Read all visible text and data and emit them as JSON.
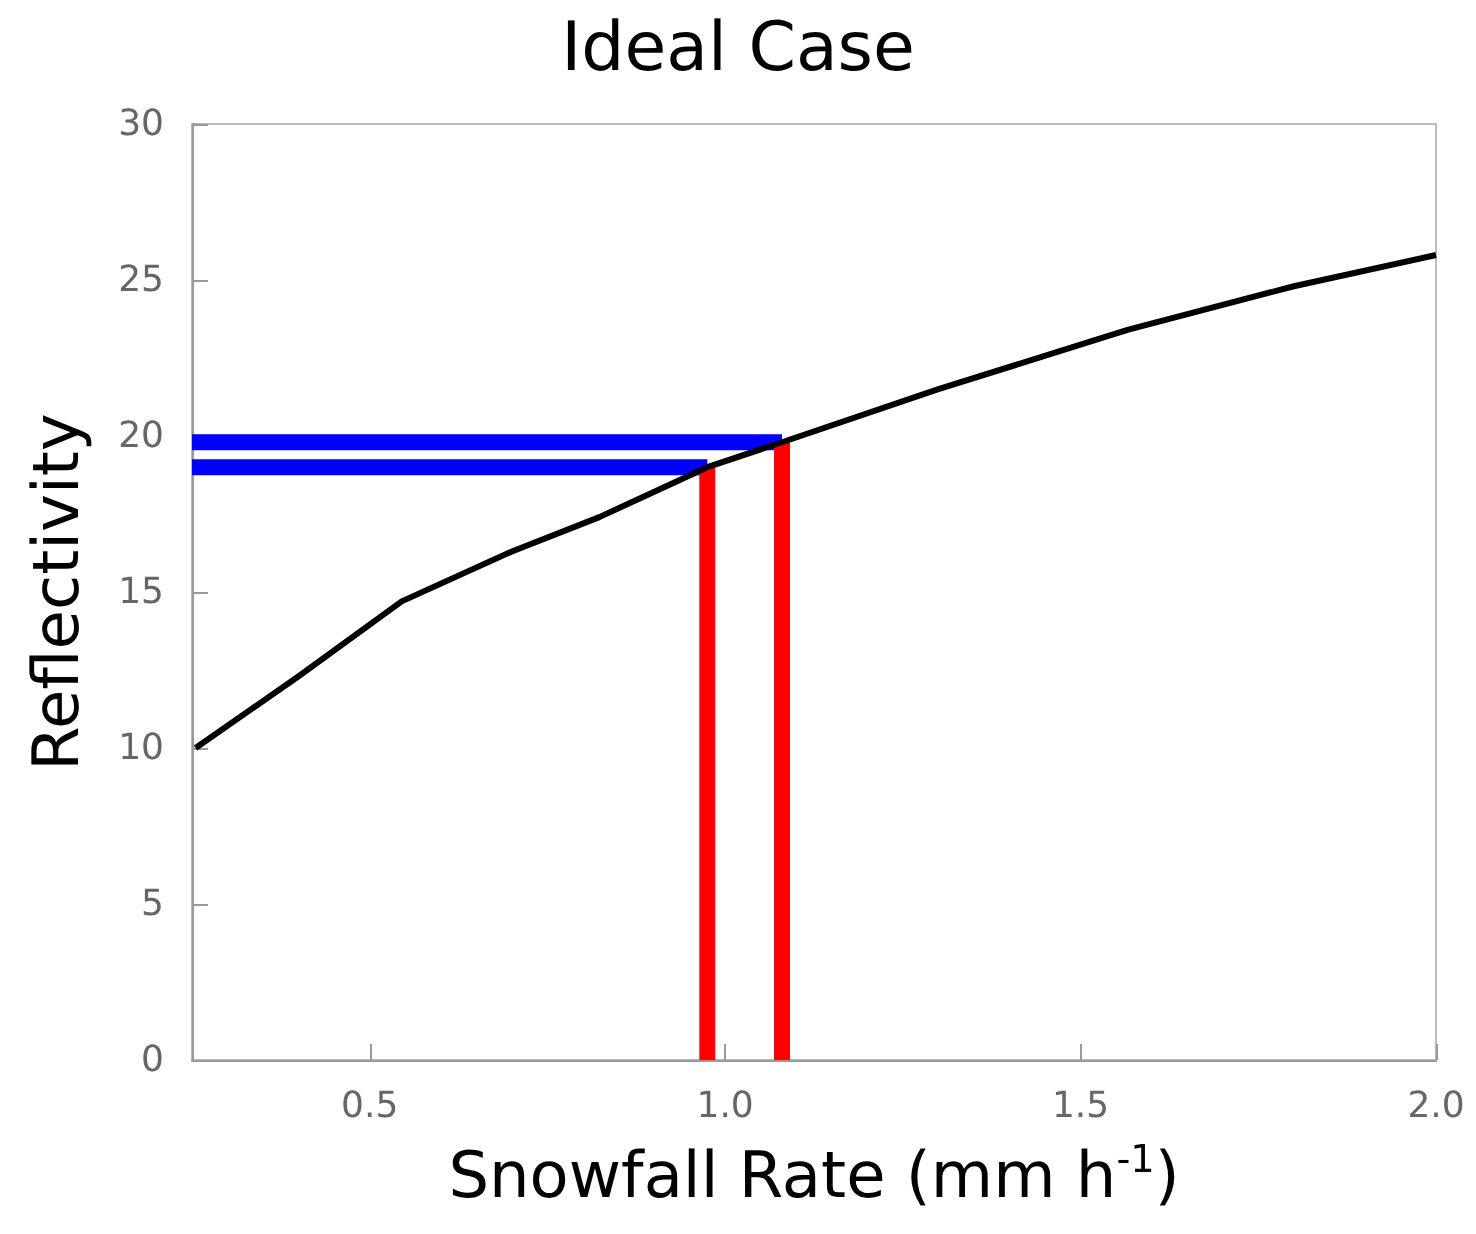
{
  "chart_data": {
    "type": "line",
    "title": "Ideal Case",
    "xlabel": "Snowfall Rate (mm h$^{-1}$)",
    "ylabel": "Reflectivity",
    "xlim": [
      0.25,
      2.0
    ],
    "ylim": [
      0,
      30
    ],
    "xticks": [
      {
        "value": 0.5,
        "label": "0.5"
      },
      {
        "value": 1.0,
        "label": "1.0"
      },
      {
        "value": 1.5,
        "label": "1.5"
      },
      {
        "value": 2.0,
        "label": "2.0"
      }
    ],
    "yticks": [
      0,
      5,
      10,
      15,
      20,
      25,
      30
    ],
    "grid": false,
    "marker": "none",
    "line_style": "solid",
    "series": [
      {
        "color": "#000000",
        "x": [
          0.255,
          0.4,
          0.545,
          0.7,
          0.823,
          0.975,
          1.08,
          1.3,
          1.566,
          1.8,
          2.0
        ],
        "values": [
          10,
          12.3,
          14.7,
          16.3,
          17.4,
          19.0,
          19.8,
          21.5,
          23.4,
          24.8,
          25.8
        ]
      },
      {
        "color": "#0000ff",
        "x": [
          0.25,
          0.975
        ],
        "values": [
          19.0,
          19.0
        ]
      },
      {
        "color": "#0000ff",
        "x": [
          0.25,
          1.08
        ],
        "values": [
          19.8,
          19.8
        ]
      },
      {
        "color": "#ff0000",
        "x": [
          0.975,
          0.975
        ],
        "values": [
          0,
          19.0
        ]
      },
      {
        "color": "#ff0000",
        "x": [
          1.08,
          1.08
        ],
        "values": [
          0,
          19.8
        ]
      }
    ]
  }
}
